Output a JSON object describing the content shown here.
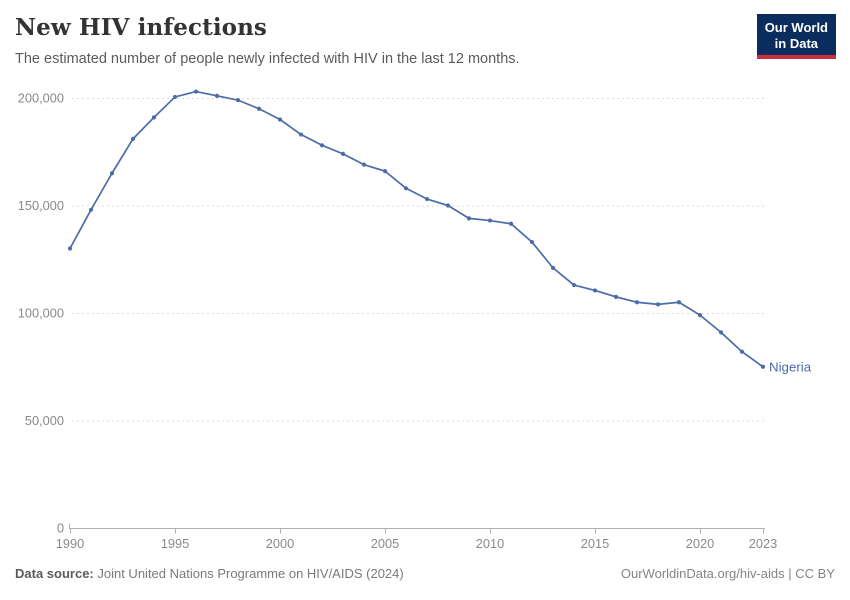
{
  "header": {
    "title": "New HIV infections",
    "subtitle": "The estimated number of people newly infected with HIV in the last 12 months.",
    "logo": {
      "line1": "Our World",
      "line2": "in Data"
    }
  },
  "chart_data": {
    "type": "line",
    "title": "New HIV infections",
    "xlabel": "",
    "ylabel": "",
    "xlim": [
      1990,
      2023
    ],
    "ylim": [
      0,
      200000
    ],
    "grid": "horizontal-dashed",
    "legend_position": "end-of-line-label",
    "x_ticks": [
      1990,
      1995,
      2000,
      2005,
      2010,
      2015,
      2020,
      2023
    ],
    "y_ticks": [
      0,
      50000,
      100000,
      150000,
      200000
    ],
    "y_tick_labels": [
      "0",
      "50,000",
      "100,000",
      "150,000",
      "200,000"
    ],
    "series": [
      {
        "name": "Nigeria",
        "color": "#4C6CA8",
        "x": [
          1990,
          1991,
          1992,
          1993,
          1994,
          1995,
          1996,
          1997,
          1998,
          1999,
          2000,
          2001,
          2002,
          2003,
          2004,
          2005,
          2006,
          2007,
          2008,
          2009,
          2010,
          2011,
          2012,
          2013,
          2014,
          2015,
          2016,
          2017,
          2018,
          2019,
          2020,
          2021,
          2022,
          2023
        ],
        "values": [
          130000,
          148000,
          165000,
          181000,
          191000,
          200500,
          203000,
          201000,
          199000,
          195000,
          190000,
          183000,
          178000,
          174000,
          169000,
          166000,
          158000,
          153000,
          150000,
          144000,
          143000,
          141500,
          133000,
          121000,
          113000,
          110500,
          107500,
          105000,
          104000,
          105000,
          99000,
          91000,
          82000,
          75000
        ]
      }
    ]
  },
  "footer": {
    "datasource_label": "Data source:",
    "datasource_value": " Joint United Nations Programme on HIV/AIDS (2024)",
    "link": "OurWorldinData.org/hiv-aids | CC BY"
  },
  "colors": {
    "line": "#4C6CA8",
    "gridline": "#dcdcdc",
    "axis": "#b0b0b0",
    "tick_label": "#8a8a8a",
    "brand_navy": "#0b2d5e",
    "brand_red": "#c9303e"
  }
}
